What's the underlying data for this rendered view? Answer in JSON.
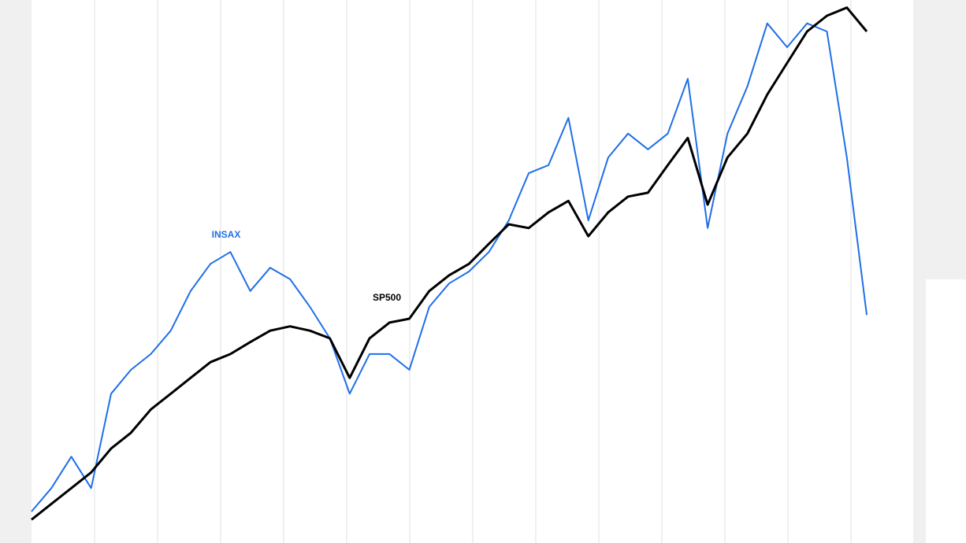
{
  "chart_data": {
    "type": "line",
    "ylim": [
      0,
      100
    ],
    "series": [
      {
        "name": "INSAX",
        "color": "#1f6fe8",
        "values": [
          5.8,
          10.1,
          15.9,
          10.1,
          27.5,
          31.9,
          34.8,
          39.1,
          46.4,
          51.4,
          53.6,
          46.4,
          50.7,
          48.6,
          43.5,
          37.7,
          27.5,
          34.8,
          34.8,
          31.9,
          43.5,
          47.8,
          50,
          53.6,
          59.4,
          68.1,
          69.6,
          78.3,
          59.4,
          71,
          75.4,
          72.5,
          75.4,
          85.5,
          58,
          75.4,
          84.1,
          95.7,
          91.3,
          95.7,
          94.2,
          71,
          42
        ]
      },
      {
        "name": "SP500",
        "color": "#000000",
        "values": [
          4.3,
          7.2,
          10.1,
          13,
          17.4,
          20.3,
          24.6,
          27.5,
          30.4,
          33.3,
          34.8,
          37,
          39.1,
          39.9,
          39.1,
          37.7,
          30.4,
          37.7,
          40.6,
          41.3,
          46.4,
          49.3,
          51.4,
          55.1,
          58.7,
          58,
          60.9,
          63,
          56.5,
          60.9,
          63.8,
          64.5,
          69.6,
          74.6,
          62.3,
          71,
          75.4,
          82.6,
          88.4,
          94.2,
          97.1,
          98.6,
          94.2
        ]
      }
    ]
  }
}
